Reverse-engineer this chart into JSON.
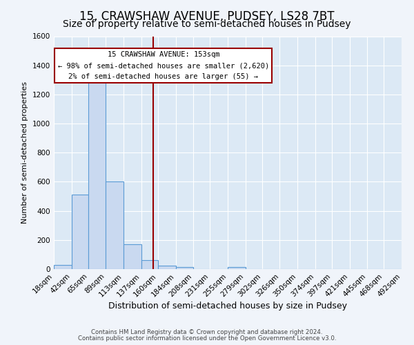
{
  "title": "15, CRAWSHAW AVENUE, PUDSEY, LS28 7BT",
  "subtitle": "Size of property relative to semi-detached houses in Pudsey",
  "xlabel": "Distribution of semi-detached houses by size in Pudsey",
  "ylabel": "Number of semi-detached properties",
  "bin_edges": [
    18,
    42,
    65,
    89,
    113,
    137,
    160,
    184,
    208,
    231,
    255,
    279,
    302,
    326,
    350,
    374,
    397,
    421,
    445,
    468,
    492
  ],
  "bar_heights": [
    30,
    510,
    1290,
    600,
    170,
    60,
    25,
    15,
    0,
    0,
    15,
    0,
    0,
    0,
    0,
    0,
    0,
    0,
    0,
    0
  ],
  "bar_color": "#c9d9f0",
  "bar_edge_color": "#5b9bd5",
  "property_line_x": 153,
  "property_line_color": "#990000",
  "annotation_title": "15 CRAWSHAW AVENUE: 153sqm",
  "annotation_line1": "← 98% of semi-detached houses are smaller (2,620)",
  "annotation_line2": "2% of semi-detached houses are larger (55) →",
  "annotation_box_color": "#ffffff",
  "annotation_box_edge": "#990000",
  "ylim": [
    0,
    1600
  ],
  "yticks": [
    0,
    200,
    400,
    600,
    800,
    1000,
    1200,
    1400,
    1600
  ],
  "background_color": "#dce9f5",
  "grid_color": "#ffffff",
  "fig_background_color": "#f0f4fa",
  "footer_line1": "Contains HM Land Registry data © Crown copyright and database right 2024.",
  "footer_line2": "Contains public sector information licensed under the Open Government Licence v3.0.",
  "title_fontsize": 12,
  "subtitle_fontsize": 10,
  "tick_label_fontsize": 7.5,
  "ylabel_fontsize": 8,
  "xlabel_fontsize": 9
}
